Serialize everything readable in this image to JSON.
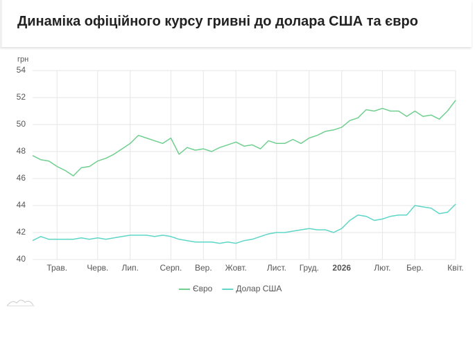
{
  "chart_data": {
    "type": "line",
    "title": "Динаміка офіційного курсу гривні до долара США та євро",
    "y_unit": "грн",
    "categories": [
      null,
      null,
      null,
      "Трав.",
      null,
      null,
      null,
      null,
      "Черв.",
      null,
      null,
      null,
      "Лип.",
      null,
      null,
      null,
      null,
      "Серп.",
      null,
      null,
      null,
      "Вер.",
      null,
      null,
      null,
      "Жовт.",
      null,
      null,
      null,
      null,
      "Лист.",
      null,
      null,
      null,
      "Груд.",
      null,
      null,
      null,
      "2026",
      null,
      null,
      null,
      null,
      "Лют.",
      null,
      null,
      null,
      "Бер.",
      null,
      null,
      null,
      null,
      "Квіт."
    ],
    "series": [
      {
        "name": "Євро",
        "color": "#6fcf8f",
        "values": [
          47.7,
          47.4,
          47.3,
          46.9,
          46.6,
          46.2,
          46.8,
          46.9,
          47.3,
          47.5,
          47.8,
          48.2,
          48.6,
          49.2,
          49.0,
          48.8,
          48.6,
          49.0,
          47.8,
          48.3,
          48.1,
          48.2,
          48.0,
          48.3,
          48.5,
          48.7,
          48.4,
          48.5,
          48.2,
          48.8,
          48.6,
          48.6,
          48.9,
          48.6,
          49.0,
          49.2,
          49.5,
          49.6,
          49.8,
          50.3,
          50.5,
          51.1,
          51.0,
          51.2,
          51.0,
          51.0,
          50.6,
          51.0,
          50.6,
          50.7,
          50.4,
          51.0,
          51.8
        ]
      },
      {
        "name": "Долар США",
        "color": "#5dd6c8",
        "values": [
          41.4,
          41.7,
          41.5,
          41.5,
          41.5,
          41.5,
          41.6,
          41.5,
          41.6,
          41.5,
          41.6,
          41.7,
          41.8,
          41.8,
          41.8,
          41.7,
          41.8,
          41.7,
          41.5,
          41.4,
          41.3,
          41.3,
          41.3,
          41.2,
          41.3,
          41.2,
          41.4,
          41.5,
          41.7,
          41.9,
          42.0,
          42.0,
          42.1,
          42.2,
          42.3,
          42.2,
          42.2,
          42.0,
          42.3,
          42.9,
          43.3,
          43.2,
          42.9,
          43.0,
          43.2,
          43.3,
          43.3,
          44.0,
          43.9,
          43.8,
          43.4,
          43.5,
          44.1
        ]
      }
    ],
    "ylim": [
      40,
      54
    ],
    "yticks": [
      40,
      42,
      44,
      46,
      48,
      50,
      52,
      54
    ],
    "grid": true,
    "legend": "bottom"
  }
}
